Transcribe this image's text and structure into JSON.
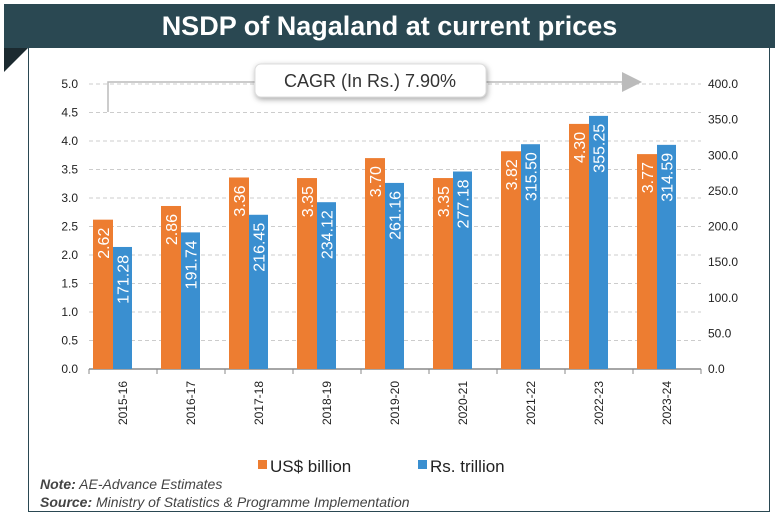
{
  "title": "NSDP of Nagaland at current prices",
  "annotation": "CAGR (In Rs.) 7.90%",
  "note_label": "Note:",
  "note_text": "AE-Advance Estimates",
  "source_label": "Source:",
  "source_text": "Ministry of Statistics & Programme Implementation",
  "chart_data": {
    "type": "bar",
    "categories": [
      "2015-16",
      "2016-17",
      "2017-18",
      "2018-19",
      "2019-20",
      "2020-21",
      "2021-22",
      "2022-23",
      "2023-24"
    ],
    "series": [
      {
        "name": "US$ billion",
        "axis": "left",
        "color": "#ed7d31",
        "values": [
          2.62,
          2.86,
          3.36,
          3.35,
          3.7,
          3.35,
          3.82,
          4.3,
          3.77
        ],
        "labels": [
          "2.62",
          "2.86",
          "3.36",
          "3.35",
          "3.70",
          "3.35",
          "3.82",
          "4.30",
          "3.77"
        ]
      },
      {
        "name": "Rs. trillion",
        "axis": "right",
        "color": "#3a8fd0",
        "values": [
          171.28,
          191.74,
          216.45,
          234.12,
          261.16,
          277.18,
          315.5,
          355.25,
          314.59
        ],
        "labels": [
          "171.28",
          "191.74",
          "216.45",
          "234.12",
          "261.16",
          "277.18",
          "315.50",
          "355.25",
          "314.59"
        ]
      }
    ],
    "y_left": {
      "lim": [
        0,
        5.0
      ],
      "ticks": [
        "0.0",
        "0.5",
        "1.0",
        "1.5",
        "2.0",
        "2.5",
        "3.0",
        "3.5",
        "4.0",
        "4.5",
        "5.0"
      ]
    },
    "y_right": {
      "lim": [
        0,
        400
      ],
      "ticks": [
        "0.0",
        "50.0",
        "100.0",
        "150.0",
        "200.0",
        "250.0",
        "300.0",
        "350.0",
        "400.0"
      ]
    },
    "grid": true,
    "legend": "bottom"
  }
}
